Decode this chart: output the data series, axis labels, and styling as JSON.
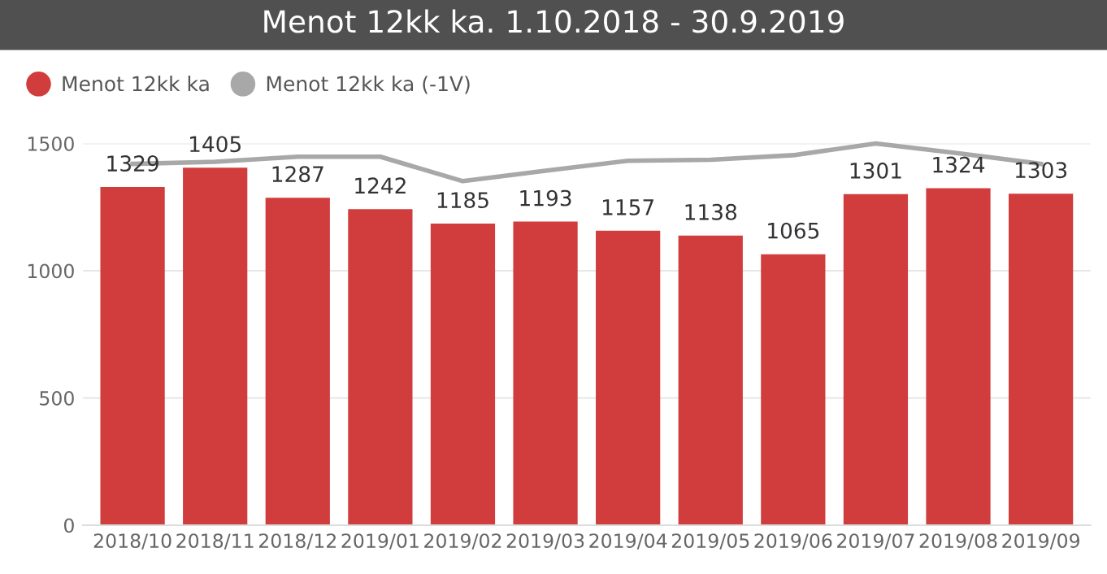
{
  "chart_data": {
    "type": "bar",
    "title": "Menot 12kk ka. 1.10.2018 - 30.9.2019",
    "categories": [
      "2018/10",
      "2018/11",
      "2018/12",
      "2019/01",
      "2019/02",
      "2019/03",
      "2019/04",
      "2019/05",
      "2019/06",
      "2019/07",
      "2019/08",
      "2019/09"
    ],
    "series": [
      {
        "name": "Menot 12kk ka",
        "color": "#d13d3d",
        "values": [
          1329,
          1405,
          1287,
          1242,
          1185,
          1193,
          1157,
          1138,
          1065,
          1301,
          1324,
          1303
        ],
        "value_labels": [
          "1329",
          "1405",
          "1287",
          "1242",
          "1185",
          "1193",
          "1157",
          "1138",
          "1065",
          "1301",
          "1324",
          "1303"
        ]
      },
      {
        "name": "Menot 12kk ka (-1V)",
        "color": "#a8a8a8",
        "type": "line",
        "values": [
          1420,
          1428,
          1448,
          1448,
          1352,
          1393,
          1432,
          1436,
          1454,
          1500,
          1462,
          1420
        ]
      }
    ],
    "ylim": [
      0,
      1500
    ],
    "yticks": [
      0,
      500,
      1000,
      1500
    ],
    "grid": "y",
    "legend": "top left"
  }
}
